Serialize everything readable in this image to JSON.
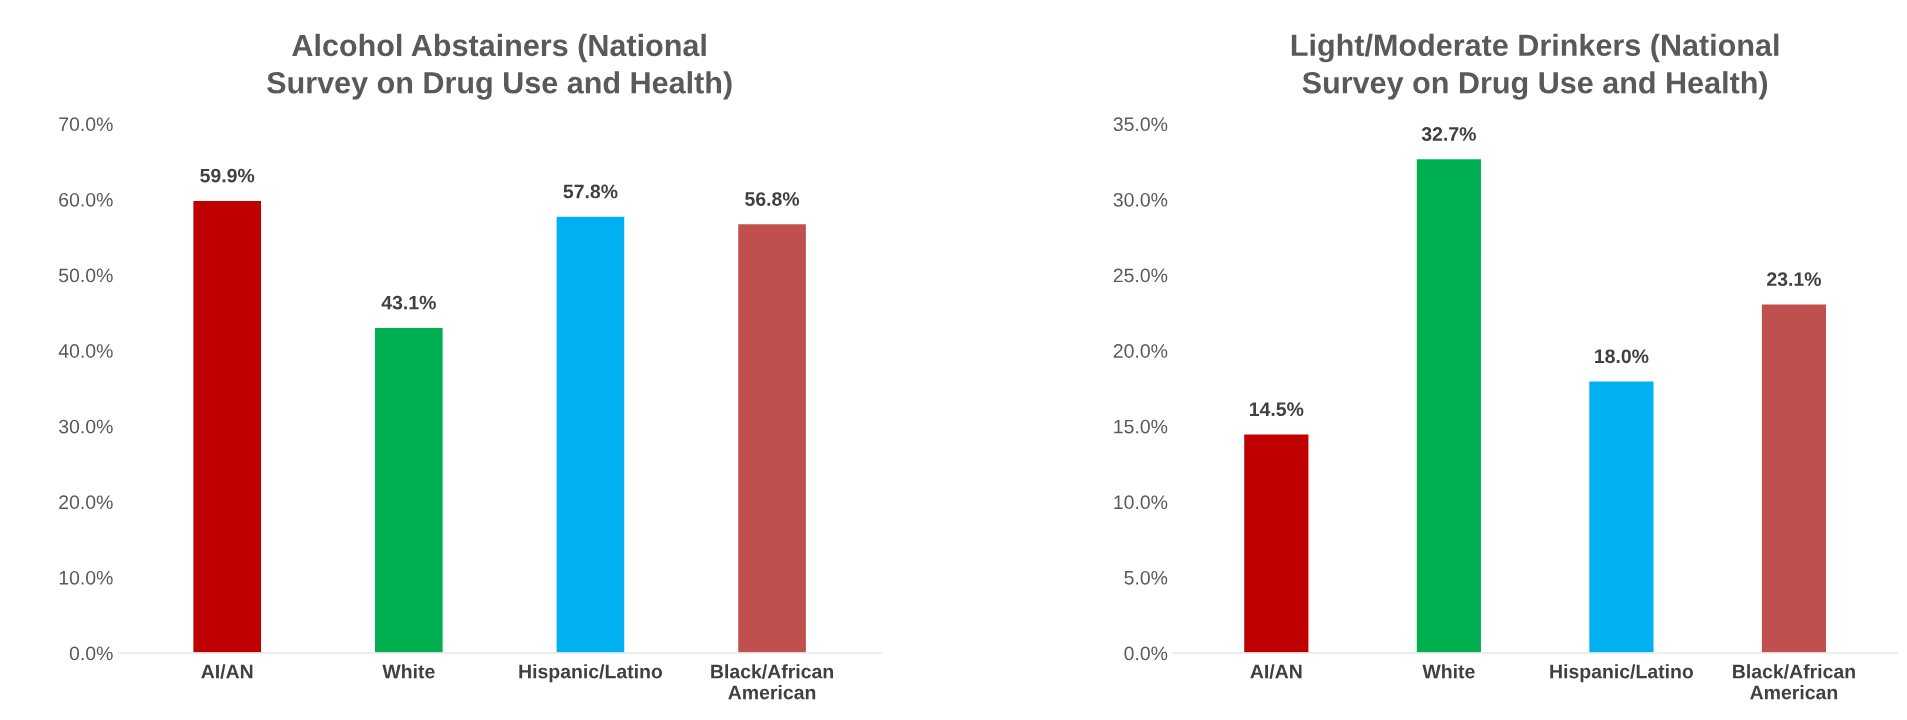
{
  "chart_data": [
    {
      "type": "bar",
      "title": "Alcohol Abstainers (National Survey on Drug Use and Health)",
      "categories": [
        "AI/AN",
        "White",
        "Hispanic/Latino",
        "Black/African American"
      ],
      "values": [
        59.9,
        43.1,
        57.8,
        56.8
      ],
      "colors": [
        "#c00000",
        "#00b050",
        "#00b0f0",
        "#c0504d"
      ],
      "value_labels": [
        "59.9%",
        "43.1%",
        "57.8%",
        "56.8%"
      ],
      "ylim": [
        0,
        70
      ],
      "yticks": [
        {
          "value": 0,
          "label": "0.0%"
        },
        {
          "value": 10,
          "label": "10.0%"
        },
        {
          "value": 20,
          "label": "20.0%"
        },
        {
          "value": 30,
          "label": "30.0%"
        },
        {
          "value": 40,
          "label": "40.0%"
        },
        {
          "value": 50,
          "label": "50.0%"
        },
        {
          "value": 60,
          "label": "60.0%"
        },
        {
          "value": 70,
          "label": "70.0%"
        }
      ],
      "grid": false,
      "legend": false
    },
    {
      "type": "bar",
      "title": "Light/Moderate Drinkers (National Survey on Drug Use and Health)",
      "categories": [
        "AI/AN",
        "White",
        "Hispanic/Latino",
        "Black/African American"
      ],
      "values": [
        14.5,
        32.7,
        18.0,
        23.1
      ],
      "colors": [
        "#c00000",
        "#00b050",
        "#00b0f0",
        "#c0504d"
      ],
      "value_labels": [
        "14.5%",
        "32.7%",
        "18.0%",
        "23.1%"
      ],
      "ylim": [
        0,
        35
      ],
      "yticks": [
        {
          "value": 0,
          "label": "0.0%"
        },
        {
          "value": 5,
          "label": "5.0%"
        },
        {
          "value": 10,
          "label": "10.0%"
        },
        {
          "value": 15,
          "label": "15.0%"
        },
        {
          "value": 20,
          "label": "20.0%"
        },
        {
          "value": 25,
          "label": "25.0%"
        },
        {
          "value": 30,
          "label": "30.0%"
        },
        {
          "value": 35,
          "label": "35.0%"
        }
      ],
      "grid": false,
      "legend": false
    }
  ]
}
